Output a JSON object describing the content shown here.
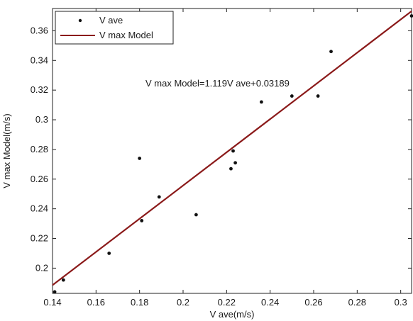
{
  "chart_data": {
    "type": "scatter",
    "xlabel": "V ave(m/s)",
    "ylabel": "V max Model(m/s)",
    "xlim": [
      0.14,
      0.305
    ],
    "ylim": [
      0.183,
      0.375
    ],
    "xticks": [
      0.14,
      0.16,
      0.18,
      0.2,
      0.22,
      0.24,
      0.26,
      0.28,
      0.3
    ],
    "xtick_labels": [
      "0.14",
      "0.16",
      "0.18",
      "0.2",
      "0.22",
      "0.24",
      "0.26",
      "0.28",
      "0.3"
    ],
    "yticks": [
      0.2,
      0.22,
      0.24,
      0.26,
      0.28,
      0.3,
      0.32,
      0.34,
      0.36
    ],
    "ytick_labels": [
      "0.2",
      "0.22",
      "0.24",
      "0.26",
      "0.28",
      "0.3",
      "0.32",
      "0.34",
      "0.36"
    ],
    "grid": false,
    "legend_position": "top-left",
    "series": [
      {
        "name": "V ave",
        "type": "scatter",
        "marker": "dot",
        "color": "#111111",
        "x": [
          0.141,
          0.145,
          0.166,
          0.18,
          0.181,
          0.189,
          0.206,
          0.222,
          0.223,
          0.224,
          0.236,
          0.25,
          0.262,
          0.268,
          0.305
        ],
        "y": [
          0.184,
          0.192,
          0.21,
          0.274,
          0.232,
          0.248,
          0.236,
          0.267,
          0.279,
          0.271,
          0.312,
          0.316,
          0.316,
          0.346,
          0.37
        ]
      },
      {
        "name": "V max Model",
        "type": "line",
        "color": "#8b1a1a",
        "slope": 1.119,
        "intercept": 0.03189,
        "x": [
          0.14,
          0.305
        ]
      }
    ],
    "annotation": "V max Model=1.119V ave+0.03189"
  }
}
